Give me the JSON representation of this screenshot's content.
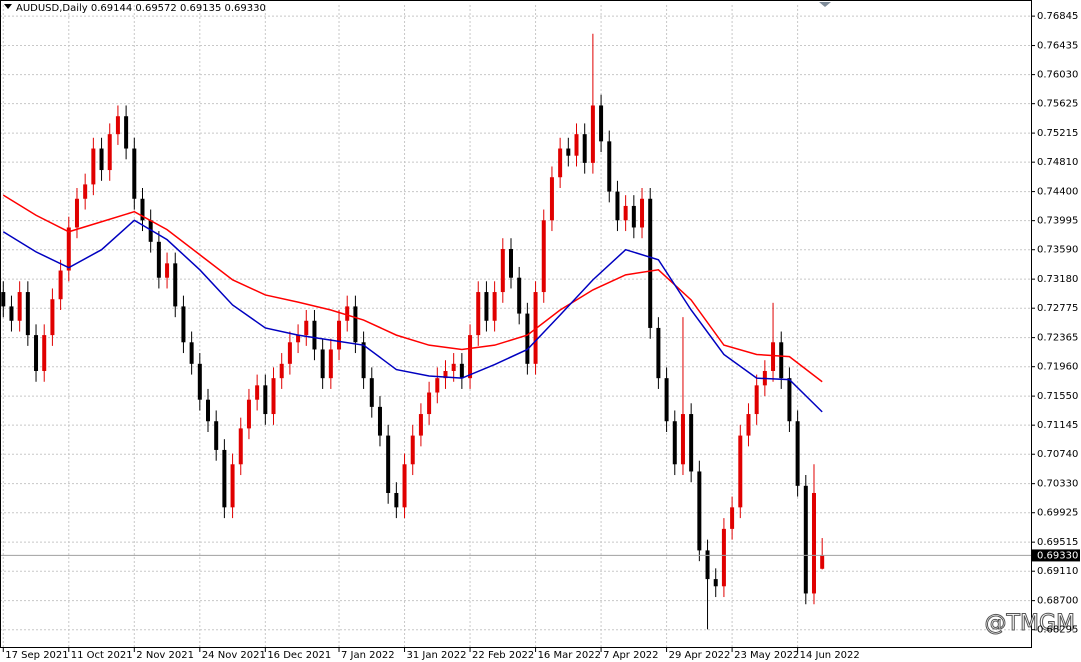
{
  "chart_data": {
    "type": "candlestick",
    "title": "AUDUSD,Daily  0.69144 0.69572 0.69135 0.69330",
    "watermark": "@TMGM",
    "up_color": "#e00000",
    "down_color": "#000000",
    "grid": true,
    "open": [
      0.73,
      0.728,
      0.726,
      0.73,
      0.724,
      0.719,
      0.724,
      0.729,
      0.733,
      0.739,
      0.743,
      0.745,
      0.75,
      0.747,
      0.752,
      0.7545,
      0.75,
      0.743,
      0.74,
      0.737,
      0.732,
      0.734,
      0.728,
      0.723,
      0.72,
      0.715,
      0.712,
      0.708,
      0.7,
      0.706,
      0.711,
      0.715,
      0.717,
      0.713,
      0.718,
      0.72,
      0.723,
      0.724,
      0.726,
      0.722,
      0.718,
      0.722,
      0.726,
      0.728,
      0.723,
      0.718,
      0.714,
      0.71,
      0.702,
      0.7,
      0.706,
      0.71,
      0.713,
      0.716,
      0.718,
      0.719,
      0.72,
      0.718,
      0.724,
      0.73,
      0.726,
      0.73,
      0.736,
      0.732,
      0.727,
      0.72,
      0.73,
      0.74,
      0.746,
      0.75,
      0.749,
      0.752,
      0.748,
      0.756,
      0.751,
      0.744,
      0.74,
      0.742,
      0.739,
      0.743,
      0.725,
      0.718,
      0.712,
      0.706,
      0.713,
      0.705,
      0.694,
      0.69,
      0.689,
      0.697,
      0.7,
      0.71,
      0.713,
      0.717,
      0.719,
      0.723,
      0.718,
      0.712,
      0.703,
      0.688,
      0.69144
    ],
    "high": [
      0.7315,
      0.7295,
      0.7315,
      0.7315,
      0.7255,
      0.7255,
      0.7305,
      0.7345,
      0.7405,
      0.7445,
      0.7465,
      0.7515,
      0.7515,
      0.7535,
      0.756,
      0.756,
      0.7515,
      0.7445,
      0.7415,
      0.7385,
      0.7355,
      0.7355,
      0.7295,
      0.7245,
      0.7215,
      0.7165,
      0.7135,
      0.7095,
      0.7075,
      0.7125,
      0.7165,
      0.7185,
      0.7185,
      0.7195,
      0.7215,
      0.7245,
      0.7255,
      0.7275,
      0.7275,
      0.7235,
      0.7235,
      0.7275,
      0.7295,
      0.7295,
      0.7245,
      0.7195,
      0.7155,
      0.7115,
      0.7035,
      0.7075,
      0.7115,
      0.7145,
      0.7175,
      0.7195,
      0.7205,
      0.7215,
      0.7215,
      0.7255,
      0.7315,
      0.7315,
      0.7315,
      0.7375,
      0.7375,
      0.7335,
      0.7285,
      0.7315,
      0.7415,
      0.7475,
      0.7515,
      0.7515,
      0.7535,
      0.7535,
      0.766,
      0.7575,
      0.7525,
      0.7455,
      0.7435,
      0.7435,
      0.7445,
      0.7445,
      0.7265,
      0.7195,
      0.7135,
      0.7265,
      0.7145,
      0.7065,
      0.6955,
      0.6915,
      0.6985,
      0.7015,
      0.7115,
      0.7145,
      0.7185,
      0.7205,
      0.7285,
      0.7245,
      0.7195,
      0.7135,
      0.7045,
      0.706,
      0.69572
    ],
    "low": [
      0.7265,
      0.7245,
      0.7245,
      0.7225,
      0.7175,
      0.7175,
      0.7225,
      0.7275,
      0.7315,
      0.7375,
      0.7415,
      0.7435,
      0.7455,
      0.7455,
      0.7505,
      0.7485,
      0.7415,
      0.7385,
      0.7355,
      0.7305,
      0.7305,
      0.7265,
      0.7215,
      0.7185,
      0.7135,
      0.7105,
      0.7065,
      0.6985,
      0.6985,
      0.7045,
      0.7095,
      0.7135,
      0.7115,
      0.7115,
      0.7165,
      0.7185,
      0.7215,
      0.7225,
      0.7205,
      0.7165,
      0.7165,
      0.7205,
      0.7245,
      0.7215,
      0.7165,
      0.7125,
      0.7085,
      0.7005,
      0.6985,
      0.6985,
      0.7045,
      0.7085,
      0.7115,
      0.7145,
      0.7165,
      0.7175,
      0.7165,
      0.7165,
      0.7225,
      0.7245,
      0.7245,
      0.7285,
      0.7305,
      0.7255,
      0.7185,
      0.7185,
      0.7285,
      0.7385,
      0.7445,
      0.7475,
      0.7475,
      0.7465,
      0.7465,
      0.7495,
      0.7425,
      0.7385,
      0.7385,
      0.7375,
      0.7375,
      0.7235,
      0.7165,
      0.7105,
      0.7045,
      0.7045,
      0.7035,
      0.6925,
      0.683,
      0.6875,
      0.6875,
      0.6955,
      0.6985,
      0.7085,
      0.7115,
      0.7155,
      0.7175,
      0.7165,
      0.7105,
      0.7015,
      0.6865,
      0.6865,
      0.69135
    ],
    "close": [
      0.728,
      0.726,
      0.73,
      0.724,
      0.719,
      0.724,
      0.729,
      0.733,
      0.739,
      0.743,
      0.745,
      0.75,
      0.747,
      0.752,
      0.7545,
      0.75,
      0.743,
      0.74,
      0.737,
      0.732,
      0.734,
      0.728,
      0.723,
      0.72,
      0.715,
      0.712,
      0.708,
      0.7,
      0.706,
      0.711,
      0.715,
      0.717,
      0.713,
      0.718,
      0.72,
      0.723,
      0.724,
      0.726,
      0.722,
      0.718,
      0.722,
      0.726,
      0.728,
      0.723,
      0.718,
      0.714,
      0.71,
      0.702,
      0.7,
      0.706,
      0.71,
      0.713,
      0.716,
      0.718,
      0.719,
      0.72,
      0.718,
      0.724,
      0.73,
      0.726,
      0.73,
      0.736,
      0.732,
      0.727,
      0.72,
      0.73,
      0.74,
      0.746,
      0.75,
      0.749,
      0.752,
      0.748,
      0.756,
      0.751,
      0.744,
      0.74,
      0.742,
      0.739,
      0.743,
      0.725,
      0.718,
      0.712,
      0.706,
      0.713,
      0.705,
      0.694,
      0.69,
      0.689,
      0.697,
      0.7,
      0.71,
      0.713,
      0.717,
      0.719,
      0.723,
      0.718,
      0.712,
      0.703,
      0.688,
      0.702,
      0.6933
    ],
    "series": [
      {
        "color": "#ff0000",
        "x": [
          0,
          4,
          8,
          12,
          16,
          20,
          24,
          28,
          32,
          36,
          40,
          44,
          48,
          52,
          56,
          60,
          64,
          68,
          72,
          76,
          80,
          84,
          88,
          92,
          96,
          100
        ],
        "values": [
          0.7435,
          0.7407,
          0.7384,
          0.7398,
          0.7412,
          0.7387,
          0.7352,
          0.7317,
          0.7296,
          0.7286,
          0.7275,
          0.7261,
          0.724,
          0.7226,
          0.722,
          0.7226,
          0.724,
          0.7275,
          0.7303,
          0.7324,
          0.7331,
          0.7289,
          0.7226,
          0.7213,
          0.721,
          0.7175
        ]
      },
      {
        "color": "#0000c0",
        "x": [
          0,
          4,
          8,
          12,
          16,
          20,
          24,
          28,
          32,
          36,
          40,
          44,
          48,
          52,
          56,
          60,
          64,
          68,
          72,
          76,
          80,
          84,
          88,
          92,
          96,
          100
        ],
        "values": [
          0.7384,
          0.7356,
          0.7334,
          0.7359,
          0.74,
          0.7373,
          0.7331,
          0.7282,
          0.725,
          0.724,
          0.7233,
          0.7226,
          0.7192,
          0.7183,
          0.718,
          0.7199,
          0.722,
          0.7268,
          0.7317,
          0.7359,
          0.7345,
          0.7275,
          0.7213,
          0.718,
          0.7178,
          0.7133
        ]
      }
    ],
    "current_price": {
      "value": 0.6933,
      "label": "0.69330"
    },
    "xlim": [
      -0.4,
      125.5
    ],
    "xticks": [
      {
        "value": 0,
        "label": "17 Sep 2021"
      },
      {
        "value": 8,
        "label": "11 Oct 2021"
      },
      {
        "value": 16,
        "label": "2 Nov 2021"
      },
      {
        "value": 24,
        "label": "24 Nov 2021"
      },
      {
        "value": 32,
        "label": "16 Dec 2021"
      },
      {
        "value": 41,
        "label": "7 Jan 2022"
      },
      {
        "value": 49,
        "label": "31 Jan 2022"
      },
      {
        "value": 57,
        "label": "22 Feb 2022"
      },
      {
        "value": 65,
        "label": "16 Mar 2022"
      },
      {
        "value": 73,
        "label": "7 Apr 2022"
      },
      {
        "value": 81,
        "label": "29 Apr 2022"
      },
      {
        "value": 89,
        "label": "23 May 2022"
      },
      {
        "value": 97,
        "label": "14 Jun 2022"
      }
    ],
    "ylim": [
      0.6804,
      0.77
    ],
    "yticks": [
      0.76845,
      0.76435,
      {
        "value": 0.7603,
        "label": "0.76030"
      },
      0.75625,
      0.75215,
      {
        "value": 0.7481,
        "label": "0.74810"
      },
      {
        "value": 0.744,
        "label": "0.74400"
      },
      0.73995,
      {
        "value": 0.7359,
        "label": "0.73590"
      },
      {
        "value": 0.7318,
        "label": "0.73180"
      },
      0.72775,
      0.72365,
      {
        "value": 0.7196,
        "label": "0.71960"
      },
      {
        "value": 0.7155,
        "label": "0.71550"
      },
      0.71145,
      {
        "value": 0.7074,
        "label": "0.70740"
      },
      {
        "value": 0.7033,
        "label": "0.70330"
      },
      0.69925,
      0.69515,
      {
        "value": 0.6911,
        "label": "0.69110"
      },
      {
        "value": 0.687,
        "label": "0.68700"
      },
      0.68295
    ]
  }
}
